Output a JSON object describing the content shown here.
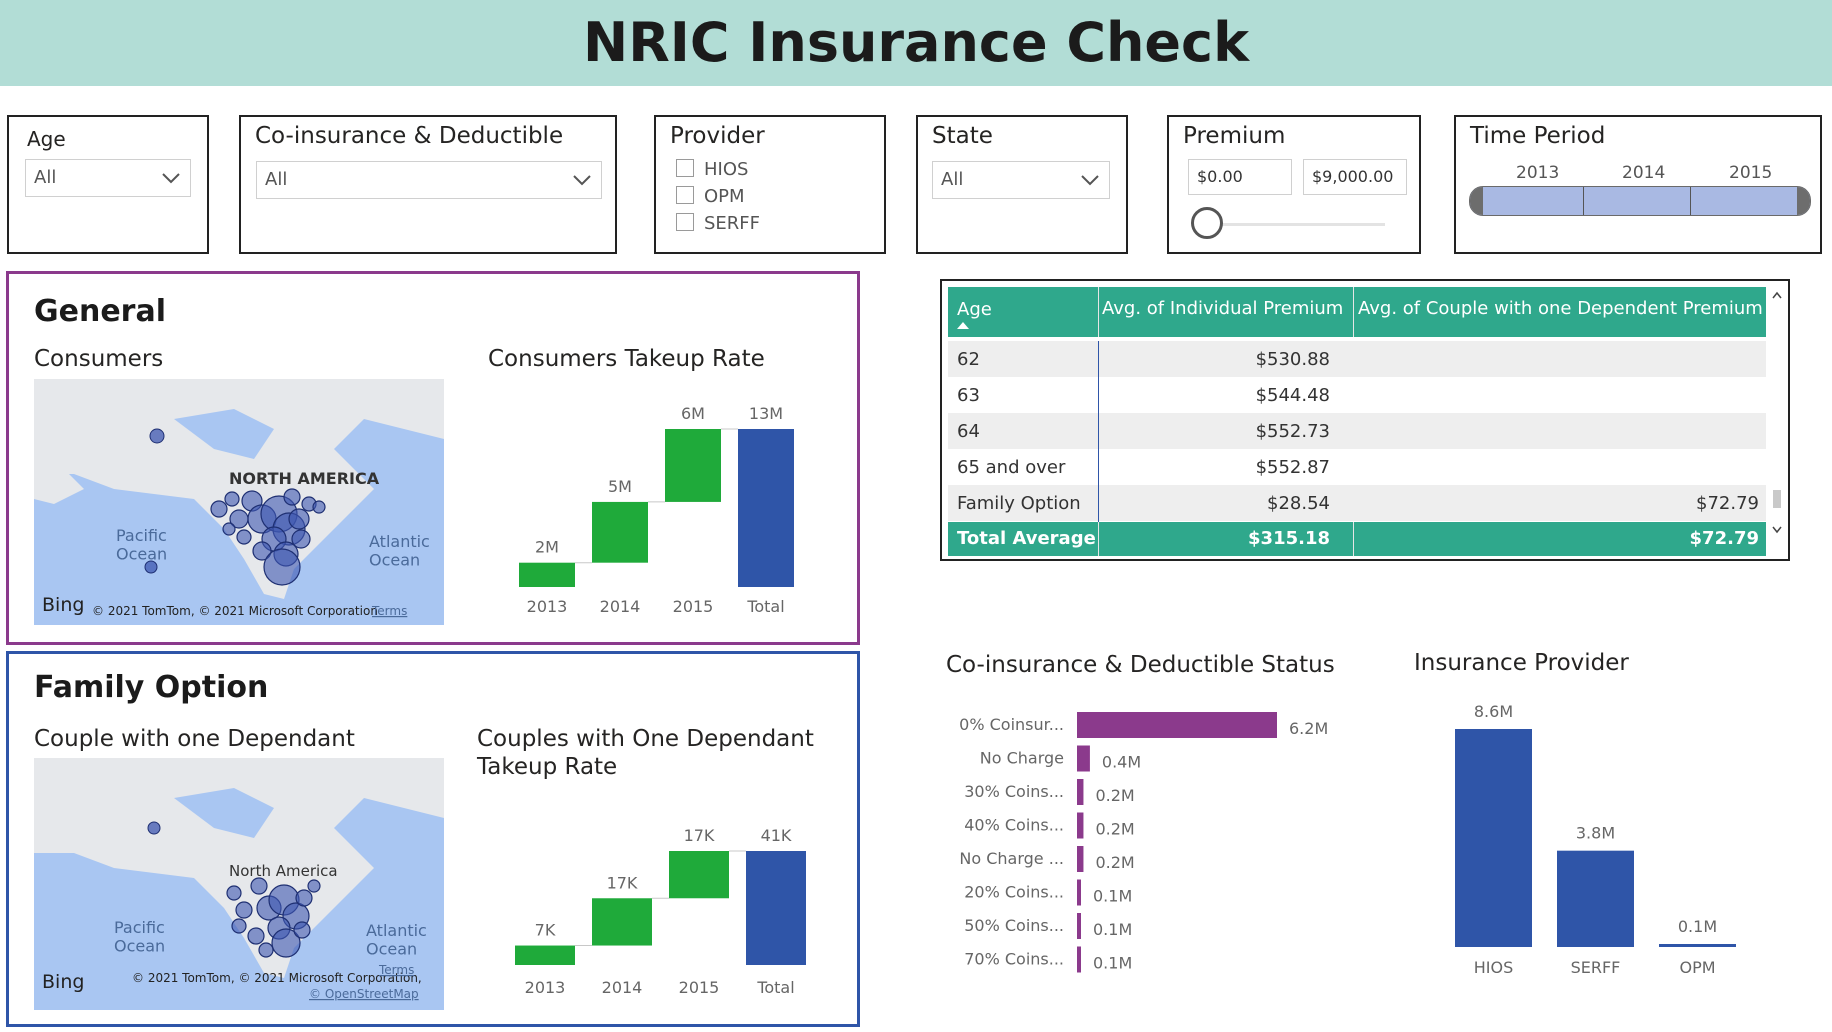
{
  "header": {
    "title": "NRIC Insurance Check"
  },
  "slicers": {
    "age": {
      "title": "Age",
      "value": "All"
    },
    "coins": {
      "title": "Co-insurance & Deductible",
      "value": "All"
    },
    "provider": {
      "title": "Provider",
      "options": [
        "HIOS",
        "OPM",
        "SERFF"
      ]
    },
    "state": {
      "title": "State",
      "value": "All"
    },
    "premium": {
      "title": "Premium",
      "min": "$0.00",
      "max": "$9,000.00"
    },
    "time_period": {
      "title": "Time Period",
      "years": [
        "2013",
        "2014",
        "2015"
      ]
    }
  },
  "general": {
    "title": "General",
    "map_title": "Consumers",
    "map_labels": {
      "continent": "NORTH AMERICA",
      "pacific": "Pacific\nOcean",
      "atlantic": "Atlantic\nOcean",
      "bing": "Bing",
      "copyright": "© 2021 TomTom, © 2021 Microsoft Corporation",
      "terms": "Terms"
    },
    "chart_title": "Consumers Takeup Rate"
  },
  "family": {
    "title": "Family Option",
    "map_title": "Couple with one Dependant",
    "map_labels": {
      "continent": "North America",
      "pacific": "Pacific\nOcean",
      "atlantic": "Atlantic\nOcean",
      "bing": "Bing",
      "copyright": "© 2021 TomTom, © 2021 Microsoft Corporation,",
      "terms": "Terms",
      "osm": "© OpenStreetMap"
    },
    "chart_title_1": "Couples with One Dependant",
    "chart_title_2": "Takeup Rate"
  },
  "table": {
    "headers": [
      "Age",
      "Avg. of Individual Premium",
      "Avg. of Couple with one Dependent Premium"
    ],
    "rows": [
      [
        "62",
        "$530.88",
        ""
      ],
      [
        "63",
        "$544.48",
        ""
      ],
      [
        "64",
        "$552.73",
        ""
      ],
      [
        "65 and over",
        "$552.87",
        ""
      ],
      [
        "Family Option",
        "$28.54",
        "$72.79"
      ]
    ],
    "total": [
      "Total Average",
      "$315.18",
      "$72.79"
    ]
  },
  "coins_chart_title": "Co-insurance & Deductible Status",
  "provider_chart_title": "Insurance Provider",
  "colors": {
    "accent_teal": "#2fa88c",
    "purple": "#8b3a8c",
    "green": "#1faa3a",
    "blue": "#2f55a8",
    "title_bar": "#b2ddd6"
  },
  "chart_data": [
    {
      "type": "bar",
      "title": "Consumers Takeup Rate",
      "categories": [
        "2013",
        "2014",
        "2015",
        "Total"
      ],
      "values": [
        2,
        5,
        6,
        13
      ],
      "labels": [
        "2M",
        "5M",
        "6M",
        "13M"
      ],
      "ylim": [
        0,
        13
      ]
    },
    {
      "type": "bar",
      "title": "Couples with One Dependant Takeup Rate",
      "categories": [
        "2013",
        "2014",
        "2015",
        "Total"
      ],
      "values": [
        7,
        17,
        17,
        41
      ],
      "labels": [
        "7K",
        "17K",
        "17K",
        "41K"
      ],
      "ylim": [
        0,
        41
      ]
    },
    {
      "type": "bar",
      "title": "Co-insurance & Deductible Status",
      "categories": [
        "0% Coinsur...",
        "No Charge",
        "30% Coins...",
        "40% Coins...",
        "No Charge ...",
        "20% Coins...",
        "50% Coins...",
        "70% Coins..."
      ],
      "values": [
        6.2,
        0.4,
        0.2,
        0.2,
        0.2,
        0.1,
        0.1,
        0.1
      ],
      "labels": [
        "6.2M",
        "0.4M",
        "0.2M",
        "0.2M",
        "0.2M",
        "0.1M",
        "0.1M",
        "0.1M"
      ],
      "ylim": [
        0,
        6.2
      ]
    },
    {
      "type": "bar",
      "title": "Insurance Provider",
      "categories": [
        "HIOS",
        "SERFF",
        "OPM"
      ],
      "values": [
        8.6,
        3.8,
        0.1
      ],
      "labels": [
        "8.6M",
        "3.8M",
        "0.1M"
      ],
      "ylim": [
        0,
        8.6
      ]
    }
  ]
}
